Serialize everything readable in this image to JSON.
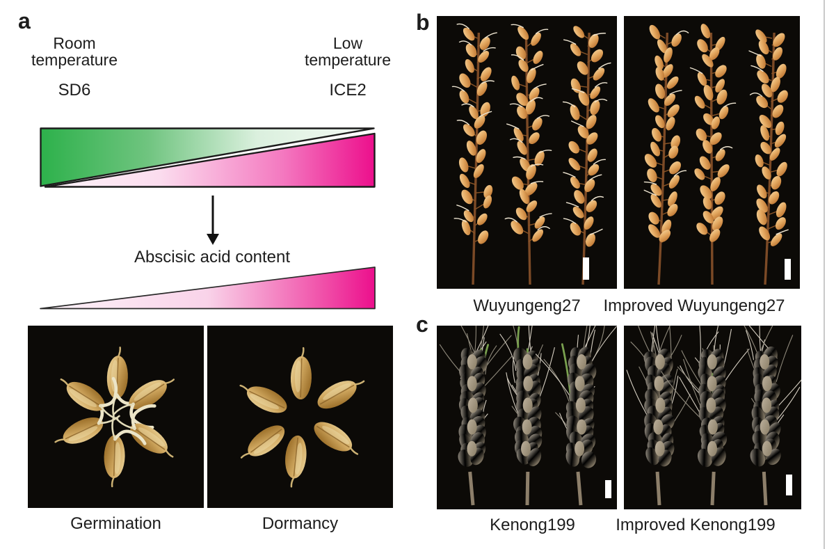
{
  "colors": {
    "green": "#2db14b",
    "magenta": "#ec0f8c",
    "photo_background": "#0c0a07",
    "scale_bar": "#ffffff"
  },
  "panel_a": {
    "label": "a",
    "room": {
      "line1": "Room",
      "line2": "temperature",
      "gene": "SD6"
    },
    "low": {
      "line1": "Low",
      "line2": "temperature",
      "gene": "ICE2"
    },
    "abscisic_label": "Abscisic acid content",
    "captions": {
      "left": "Germination",
      "right": "Dormancy"
    }
  },
  "panel_b": {
    "label": "b",
    "captions": {
      "left": "Wuyungeng27",
      "right": "Improved Wuyungeng27"
    }
  },
  "panel_c": {
    "label": "c",
    "captions": {
      "left": "Kenong199",
      "right": "Improved Kenong199"
    }
  }
}
